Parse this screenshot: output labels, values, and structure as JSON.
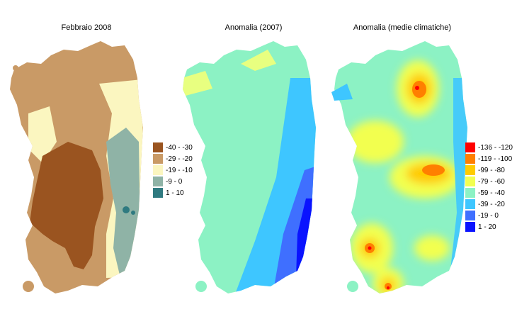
{
  "panels": [
    {
      "title": "Febbraio 2008",
      "legend": [
        {
          "label": "-40 - -30",
          "color": "#9a5420"
        },
        {
          "label": "-29 - -20",
          "color": "#c99a66"
        },
        {
          "label": "-19 - -10",
          "color": "#fbf6c0"
        },
        {
          "label": "-9 - 0",
          "color": "#8fb3a6"
        },
        {
          "label": "1 - 10",
          "color": "#2f7a80"
        }
      ]
    },
    {
      "title": "Anomalia (2007)",
      "legend": [],
      "colors": {
        "main": "#8cf2c4",
        "lightblue": "#3ec6ff",
        "blue": "#3f6fff",
        "deep": "#0a13ff",
        "yellow": "#e8ff80"
      }
    },
    {
      "title": "Anomalia (medie climatiche)",
      "legend": [
        {
          "label": "-136 - -120",
          "color": "#ff0000"
        },
        {
          "label": "-119 - -100",
          "color": "#ff7f00"
        },
        {
          "label": "-99 - -80",
          "color": "#ffcc00"
        },
        {
          "label": "-79 - -60",
          "color": "#f2ff50"
        },
        {
          "label": "-59 - -40",
          "color": "#8cf2c4"
        },
        {
          "label": "-39 - -20",
          "color": "#3ec6ff"
        },
        {
          "label": "-19 - 0",
          "color": "#3f6fff"
        },
        {
          "label": "1 - 20",
          "color": "#0a13ff"
        }
      ]
    }
  ]
}
